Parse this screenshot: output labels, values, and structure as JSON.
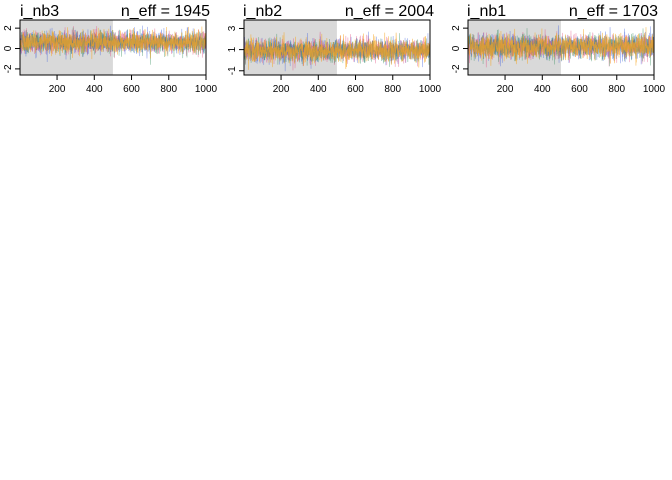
{
  "chart_data": [
    {
      "type": "line",
      "title": "i_nb3",
      "subtitle_label": "n_eff = 1945",
      "x_ticks": [
        200,
        400,
        600,
        800,
        1000
      ],
      "y_ticks": [
        -2,
        0,
        2
      ],
      "xlim": [
        1,
        1000
      ],
      "ylim": [
        -2.6,
        2.8
      ],
      "warmup_end": 500,
      "center": 0.6,
      "spread": 0.55,
      "series": [
        {
          "color": "#3b5bdb"
        },
        {
          "color": "#e0457b"
        },
        {
          "color": "#2e8b57"
        },
        {
          "color": "#f5a623"
        }
      ]
    },
    {
      "type": "line",
      "title": "i_nb2",
      "subtitle_label": "n_eff = 2004",
      "x_ticks": [
        200,
        400,
        600,
        800,
        1000
      ],
      "y_ticks": [
        -1,
        1,
        3
      ],
      "xlim": [
        1,
        1000
      ],
      "ylim": [
        -1.4,
        3.8
      ],
      "warmup_end": 500,
      "center": 0.9,
      "spread": 0.55,
      "series": [
        {
          "color": "#3b5bdb"
        },
        {
          "color": "#e0457b"
        },
        {
          "color": "#2e8b57"
        },
        {
          "color": "#f5a623"
        }
      ]
    },
    {
      "type": "line",
      "title": "i_nb1",
      "subtitle_label": "n_eff = 1703",
      "x_ticks": [
        200,
        400,
        600,
        800,
        1000
      ],
      "y_ticks": [
        -2,
        0,
        2
      ],
      "xlim": [
        1,
        1000
      ],
      "ylim": [
        -2.6,
        2.8
      ],
      "warmup_end": 500,
      "center": 0.2,
      "spread": 0.6,
      "series": [
        {
          "color": "#3b5bdb"
        },
        {
          "color": "#e0457b"
        },
        {
          "color": "#2e8b57"
        },
        {
          "color": "#f5a623"
        }
      ]
    }
  ]
}
